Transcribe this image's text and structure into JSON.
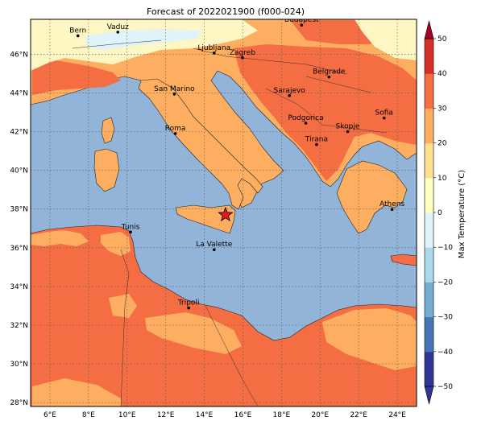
{
  "title": "Forecast of 2022021900 (f000-024)",
  "map": {
    "lat_ticks": [
      46,
      44,
      42,
      40,
      38,
      36,
      34,
      32,
      30,
      28
    ],
    "lon_ticks": [
      6,
      8,
      10,
      12,
      14,
      16,
      18,
      20,
      22,
      24
    ],
    "lat_labels": [
      "46°N",
      "44°N",
      "42°N",
      "40°N",
      "38°N",
      "36°N",
      "34°N",
      "32°N",
      "30°N",
      "28°N"
    ],
    "lon_labels": [
      "6°E",
      "8°E",
      "10°E",
      "12°E",
      "14°E",
      "16°E",
      "18°E",
      "20°E",
      "22°E",
      "24°E"
    ],
    "extent": {
      "lon_min": 5,
      "lon_max": 25,
      "lat_min": 27.8,
      "lat_max": 47.8
    },
    "grid": "on",
    "colors": {
      "sea": "#91b4d8",
      "warm_10_20": "#fdae61",
      "warm_20_30": "#f46d43",
      "mild_0_10": "#fef7c4",
      "cold_0_m10": "#e0f3f8",
      "star": "#e31a1c"
    },
    "marker": {
      "symbol": "star",
      "lon": 15.1,
      "lat": 37.7
    }
  },
  "cities": [
    {
      "name": "Bern",
      "lon": 7.45,
      "lat": 46.95
    },
    {
      "name": "Vaduz",
      "lon": 9.52,
      "lat": 47.14
    },
    {
      "name": "Budapest",
      "lon": 19.04,
      "lat": 47.5
    },
    {
      "name": "Ljubljana",
      "lon": 14.51,
      "lat": 46.06
    },
    {
      "name": "Zagreb",
      "lon": 15.98,
      "lat": 45.81
    },
    {
      "name": "Belgrade",
      "lon": 20.46,
      "lat": 44.82
    },
    {
      "name": "San Marino",
      "lon": 12.45,
      "lat": 43.94
    },
    {
      "name": "Sarajevo",
      "lon": 18.41,
      "lat": 43.86
    },
    {
      "name": "Sofia",
      "lon": 23.32,
      "lat": 42.7
    },
    {
      "name": "Podgorica",
      "lon": 19.26,
      "lat": 42.44
    },
    {
      "name": "Skopje",
      "lon": 21.43,
      "lat": 42.0
    },
    {
      "name": "Roma",
      "lon": 12.5,
      "lat": 41.9
    },
    {
      "name": "Tirana",
      "lon": 19.82,
      "lat": 41.33
    },
    {
      "name": "Athens",
      "lon": 23.73,
      "lat": 37.98
    },
    {
      "name": "Tunis",
      "lon": 10.18,
      "lat": 36.81
    },
    {
      "name": "La Valette",
      "lon": 14.51,
      "lat": 35.9
    },
    {
      "name": "Tripoli",
      "lon": 13.19,
      "lat": 32.89
    }
  ],
  "colorbar": {
    "label": "Max Temperature (°C)",
    "ticks": [
      "50",
      "40",
      "30",
      "20",
      "10",
      "0",
      "−10",
      "−20",
      "−30",
      "−40",
      "−50"
    ],
    "range": [
      -50,
      50
    ],
    "extend": "both",
    "colors": [
      "#313695",
      "#4575b4",
      "#74add1",
      "#abd9e9",
      "#e0f3f8",
      "#ffffbf",
      "#fee090",
      "#fdae61",
      "#f46d43",
      "#d73027",
      "#a50026"
    ]
  }
}
